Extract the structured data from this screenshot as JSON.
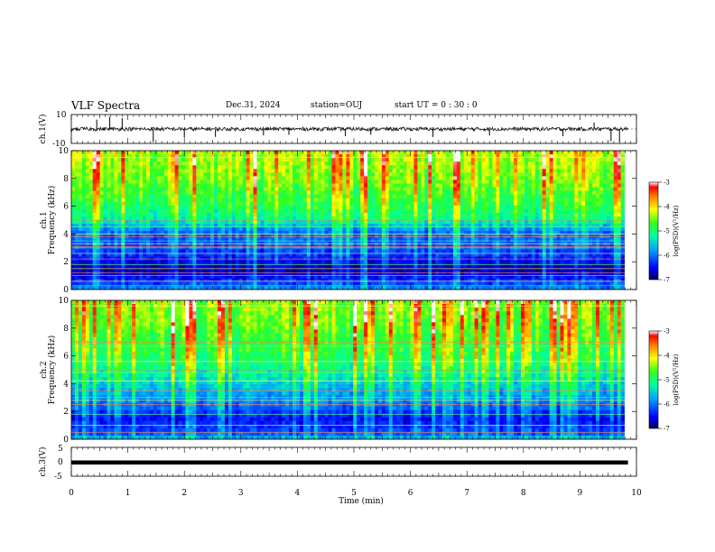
{
  "header": {
    "title": "VLF Spectra",
    "date": "Dec.31, 2024",
    "station": "station=OUJ",
    "start_ut": "start  UT =   0  : 30 : 0"
  },
  "chart_data": [
    {
      "type": "line",
      "panel": "ch1-waveform",
      "ylabel": "ch.1(V)",
      "ylim": [
        -10,
        10
      ],
      "yticks": [
        "10",
        "-10"
      ],
      "xlim": [
        0,
        10
      ],
      "baseline": 0,
      "x": [
        0.0,
        0.45,
        0.68,
        0.9,
        1.45,
        2.0,
        2.55,
        3.4,
        3.85,
        4.85,
        5.3,
        6.4,
        7.4,
        8.7,
        9.25,
        9.55,
        9.7
      ],
      "y": [
        -2.5,
        6.5,
        8.5,
        7.5,
        -9,
        -6,
        -5.5,
        -4.5,
        -4,
        -5,
        -4,
        -5.5,
        -4.5,
        -5,
        4.5,
        -8.5,
        -9
      ]
    },
    {
      "type": "heatmap",
      "panel": "ch1-spectrogram",
      "ylabel": "Frequency (kHz)",
      "channel_label": "ch.1",
      "xlim": [
        0,
        10
      ],
      "ylim": [
        0,
        10
      ],
      "yticks": [
        "0",
        "2",
        "4",
        "6",
        "8",
        "10"
      ],
      "data_end_min": 9.85,
      "colorbar": {
        "label": "log(PSD)(V²/Hz)",
        "range": [
          -7,
          -3
        ],
        "ticks": [
          "-3",
          "-4",
          "-5",
          "-6",
          "-7"
        ]
      },
      "bands_khz": [
        0.3,
        0.6,
        1.0,
        1.2,
        1.5,
        1.8,
        2.2,
        2.6,
        3.0,
        3.1,
        3.3,
        3.5,
        3.8,
        4.0,
        4.5,
        5.0,
        9.5
      ],
      "profile": [
        [
          0,
          -5.8
        ],
        [
          0.5,
          -6.3
        ],
        [
          1.5,
          -6.8
        ],
        [
          2.5,
          -6.3
        ],
        [
          3.5,
          -6.1
        ],
        [
          4.2,
          -6.0
        ],
        [
          5.0,
          -5.2
        ],
        [
          6.0,
          -4.9
        ],
        [
          7.0,
          -4.7
        ],
        [
          8.0,
          -4.5
        ],
        [
          9.0,
          -4.4
        ],
        [
          10,
          -4.3
        ]
      ]
    },
    {
      "type": "heatmap",
      "panel": "ch2-spectrogram",
      "ylabel": "Frequency (kHz)",
      "channel_label": "ch.2",
      "xlim": [
        0,
        10
      ],
      "ylim": [
        0,
        10
      ],
      "yticks": [
        "0",
        "2",
        "4",
        "6",
        "8",
        "10"
      ],
      "data_end_min": 9.85,
      "colorbar": {
        "label": "log(PSD)(V²/Hz)",
        "range": [
          -7,
          -3
        ],
        "ticks": [
          "-3",
          "-4",
          "-5",
          "-6",
          "-7"
        ]
      },
      "bands_khz": [
        0.5,
        1.0,
        1.8,
        2.5,
        2.8,
        3.0,
        3.5,
        4.2,
        4.8,
        5.0,
        5.6,
        6.7,
        7.0,
        9.6
      ],
      "profile": [
        [
          0,
          -5.6
        ],
        [
          0.5,
          -6.2
        ],
        [
          1.5,
          -6.5
        ],
        [
          2.5,
          -6.0
        ],
        [
          3.5,
          -5.7
        ],
        [
          4.5,
          -5.3
        ],
        [
          5.5,
          -5.0
        ],
        [
          6.5,
          -4.8
        ],
        [
          7.5,
          -4.7
        ],
        [
          8.5,
          -4.5
        ],
        [
          10,
          -4.4
        ]
      ]
    },
    {
      "type": "line",
      "panel": "ch3-waveform",
      "ylabel": "ch.3(V)",
      "ylim": [
        -5,
        5
      ],
      "yticks": [
        "5",
        "0",
        "-5"
      ],
      "xlim": [
        0,
        10
      ],
      "x": [
        0,
        9.85
      ],
      "y": [
        -0.25,
        -0.25
      ]
    }
  ],
  "time_axis": {
    "label": "Time (min)",
    "ticks": [
      "0",
      "1",
      "2",
      "3",
      "4",
      "5",
      "6",
      "7",
      "8",
      "9",
      "10"
    ]
  }
}
